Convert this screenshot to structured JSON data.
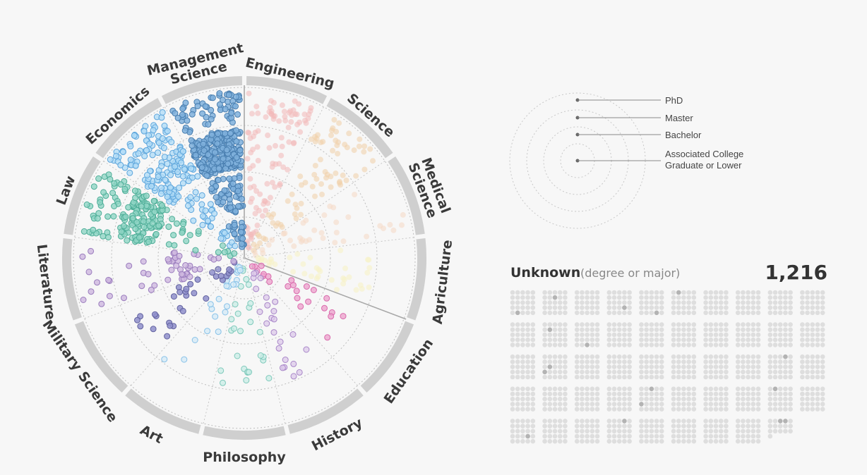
{
  "chart_data": {
    "type": "scatter",
    "form": "radial dot plot by major (sector) and degree level (ring)",
    "majors": [
      {
        "name": "Engineering",
        "lines": [
          "Engineering"
        ],
        "color": "#f2b8b8",
        "stroke": "none",
        "opacity": 0.55,
        "counts": [
          40,
          28,
          22,
          14
        ]
      },
      {
        "name": "Science",
        "lines": [
          "Science"
        ],
        "color": "#f1cfa8",
        "stroke": "none",
        "opacity": 0.55,
        "counts": [
          30,
          22,
          16,
          8
        ]
      },
      {
        "name": "Medical Science",
        "lines": [
          "Medical",
          "Science"
        ],
        "color": "#f5d9c4",
        "stroke": "none",
        "opacity": 0.55,
        "counts": [
          6,
          10,
          14,
          6
        ]
      },
      {
        "name": "Agriculture",
        "lines": [
          "Agriculture"
        ],
        "color": "#f7f1c6",
        "stroke": "none",
        "opacity": 0.6,
        "counts": [
          0,
          16,
          12,
          10
        ]
      },
      {
        "name": "Education",
        "lines": [
          "Education"
        ],
        "color": "#ec9fcb",
        "stroke": "#d96aac",
        "opacity": 0.75,
        "counts": [
          0,
          6,
          9,
          8
        ]
      },
      {
        "name": "History",
        "lines": [
          "History"
        ],
        "color": "#dccaea",
        "stroke": "#a886c8",
        "opacity": 0.75,
        "counts": [
          0,
          10,
          9,
          5
        ]
      },
      {
        "name": "Philosophy",
        "lines": [
          "Philosophy"
        ],
        "color": "#c8ece5",
        "stroke": "#7fc9bb",
        "opacity": 0.75,
        "counts": [
          0,
          12,
          10,
          5
        ]
      },
      {
        "name": "Art",
        "lines": [
          "Art"
        ],
        "color": "#d3e9f7",
        "stroke": "#89c2e8",
        "opacity": 0.75,
        "counts": [
          0,
          3,
          8,
          14
        ]
      },
      {
        "name": "Military Science",
        "lines": [
          "Military Science"
        ],
        "color": "#8f8fcb",
        "stroke": "#62629f",
        "opacity": 0.85,
        "counts": [
          0,
          10,
          12,
          10
        ]
      },
      {
        "name": "Literature",
        "lines": [
          "Literature"
        ],
        "color": "#cdb6de",
        "stroke": "#9a7cbd",
        "opacity": 0.8,
        "counts": [
          10,
          8,
          28,
          4
        ]
      },
      {
        "name": "Law",
        "lines": [
          "Law"
        ],
        "color": "#8fd5c4",
        "stroke": "#4fae98",
        "opacity": 0.8,
        "counts": [
          40,
          120,
          16,
          6
        ]
      },
      {
        "name": "Economics",
        "lines": [
          "Economics"
        ],
        "color": "#b2dcf6",
        "stroke": "#5ea6dc",
        "opacity": 0.8,
        "counts": [
          60,
          100,
          24,
          10
        ]
      },
      {
        "name": "Management Science",
        "lines": [
          "Management",
          "Science"
        ],
        "color": "#7fb0dc",
        "stroke": "#4a7fb0",
        "opacity": 0.85,
        "counts": [
          60,
          260,
          60,
          25
        ]
      }
    ],
    "degree_rings_outer_to_inner": [
      "PhD",
      "Master",
      "Bachelor",
      "Associated College Graduate or Lower"
    ]
  },
  "legend": {
    "phd": "PhD",
    "master": "Master",
    "bachelor": "Bachelor",
    "associate_line1": "Associated College",
    "associate_line2": "Graduate or Lower"
  },
  "unknown": {
    "title": "Unknown",
    "subtitle": "(degree or major)",
    "count": "1,216",
    "count_value": 1216,
    "dot_color": "#dedede",
    "highlight_color": "#b3b3b3",
    "highlight_count": 17
  }
}
